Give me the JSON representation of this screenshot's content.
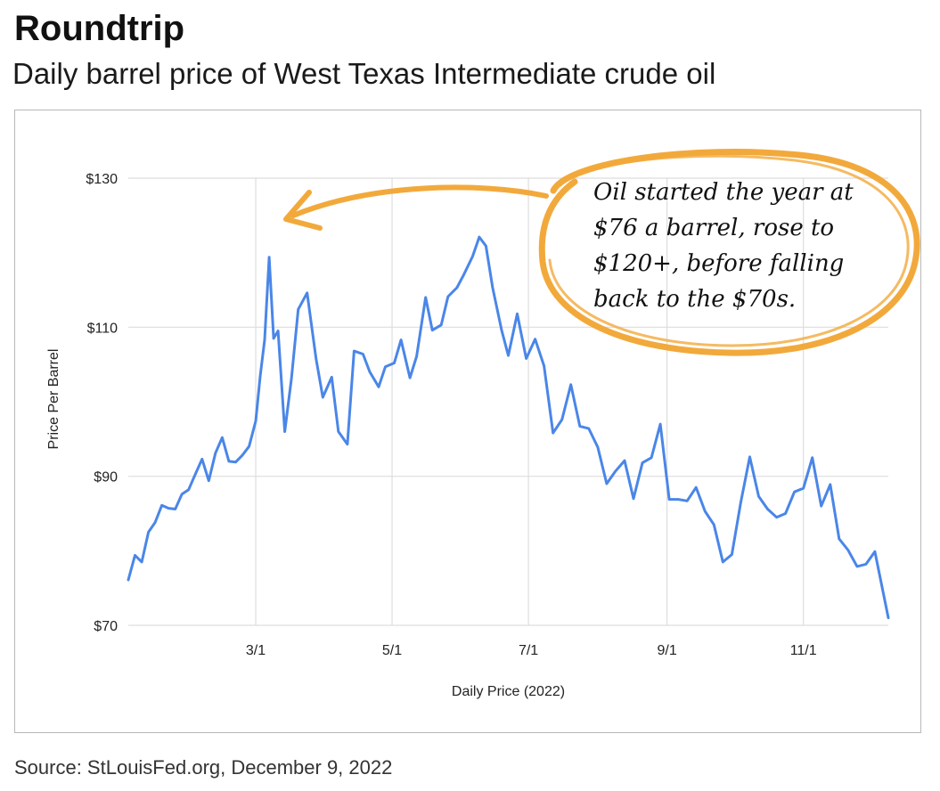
{
  "header": {
    "title": "Roundtrip",
    "subtitle": "Daily barrel price of West Texas Intermediate crude oil"
  },
  "footer": {
    "source": "Source: StLouisFed.org, December 9, 2022"
  },
  "annotation": {
    "text": "Oil started the year at $76 a barrel, rose to $120+, before falling back to the $70s."
  },
  "colors": {
    "line": "#4a86e8",
    "annotation": "#f2a93b",
    "grid": "#dddddd"
  },
  "chart_data": {
    "type": "line",
    "xlabel": "Daily Price (2022)",
    "ylabel": "Price Per Barrel",
    "ylim": [
      70,
      130
    ],
    "yticks": [
      70,
      90,
      110,
      130
    ],
    "ytick_labels": [
      "$70",
      "$90",
      "$110",
      "$130"
    ],
    "xticks": [
      "2022-03-01",
      "2022-05-01",
      "2022-07-01",
      "2022-09-01",
      "2022-11-01"
    ],
    "xtick_labels": [
      "3/1",
      "5/1",
      "7/1",
      "9/1",
      "11/1"
    ],
    "xlim": [
      "2022-01-03",
      "2022-12-09"
    ],
    "grid": true,
    "legend": "none",
    "series": [
      {
        "x": [
          "2022-01-03",
          "2022-01-06",
          "2022-01-09",
          "2022-01-12",
          "2022-01-15",
          "2022-01-18",
          "2022-01-21",
          "2022-01-24",
          "2022-01-27",
          "2022-01-30",
          "2022-02-02",
          "2022-02-05",
          "2022-02-08",
          "2022-02-11",
          "2022-02-14",
          "2022-02-17",
          "2022-02-20",
          "2022-02-23",
          "2022-02-26",
          "2022-03-01",
          "2022-03-03",
          "2022-03-05",
          "2022-03-07",
          "2022-03-09",
          "2022-03-11",
          "2022-03-14",
          "2022-03-17",
          "2022-03-20",
          "2022-03-24",
          "2022-03-28",
          "2022-03-31",
          "2022-04-04",
          "2022-04-07",
          "2022-04-11",
          "2022-04-14",
          "2022-04-18",
          "2022-04-21",
          "2022-04-25",
          "2022-04-28",
          "2022-05-02",
          "2022-05-05",
          "2022-05-09",
          "2022-05-12",
          "2022-05-16",
          "2022-05-19",
          "2022-05-23",
          "2022-05-26",
          "2022-05-30",
          "2022-06-02",
          "2022-06-06",
          "2022-06-09",
          "2022-06-12",
          "2022-06-15",
          "2022-06-19",
          "2022-06-22",
          "2022-06-26",
          "2022-06-30",
          "2022-07-04",
          "2022-07-08",
          "2022-07-12",
          "2022-07-16",
          "2022-07-20",
          "2022-07-24",
          "2022-07-28",
          "2022-08-01",
          "2022-08-05",
          "2022-08-09",
          "2022-08-13",
          "2022-08-17",
          "2022-08-21",
          "2022-08-25",
          "2022-08-29",
          "2022-09-02",
          "2022-09-06",
          "2022-09-10",
          "2022-09-14",
          "2022-09-18",
          "2022-09-22",
          "2022-09-26",
          "2022-09-30",
          "2022-10-04",
          "2022-10-08",
          "2022-10-12",
          "2022-10-16",
          "2022-10-20",
          "2022-10-24",
          "2022-10-28",
          "2022-11-01",
          "2022-11-05",
          "2022-11-09",
          "2022-11-13",
          "2022-11-17",
          "2022-11-21",
          "2022-11-25",
          "2022-11-29",
          "2022-12-03",
          "2022-12-09"
        ],
        "values": [
          76.1,
          79.4,
          78.5,
          82.5,
          83.8,
          86.1,
          85.7,
          85.6,
          87.6,
          88.2,
          90.3,
          92.3,
          89.4,
          93.1,
          95.2,
          92.0,
          91.9,
          92.8,
          94.0,
          97.4,
          103.4,
          108.3,
          119.4,
          108.5,
          109.5,
          96.0,
          103.1,
          112.4,
          114.6,
          105.8,
          100.6,
          103.3,
          96.0,
          94.3,
          106.8,
          106.4,
          104.0,
          102.0,
          104.7,
          105.2,
          108.3,
          103.2,
          106.1,
          114.0,
          109.6,
          110.3,
          114.1,
          115.3,
          117.0,
          119.5,
          122.1,
          120.9,
          115.3,
          109.6,
          106.2,
          111.8,
          105.8,
          108.4,
          104.8,
          95.8,
          97.6,
          102.3,
          96.7,
          96.4,
          93.9,
          89.0,
          90.7,
          92.1,
          87.0,
          91.8,
          92.5,
          97.0,
          86.9,
          86.9,
          86.7,
          88.5,
          85.3,
          83.5,
          78.5,
          79.5,
          86.5,
          92.6,
          87.3,
          85.6,
          84.5,
          85.0,
          87.9,
          88.4,
          92.5,
          86.0,
          88.9,
          81.6,
          80.1,
          77.9,
          78.2,
          79.9,
          71.0
        ]
      }
    ]
  }
}
